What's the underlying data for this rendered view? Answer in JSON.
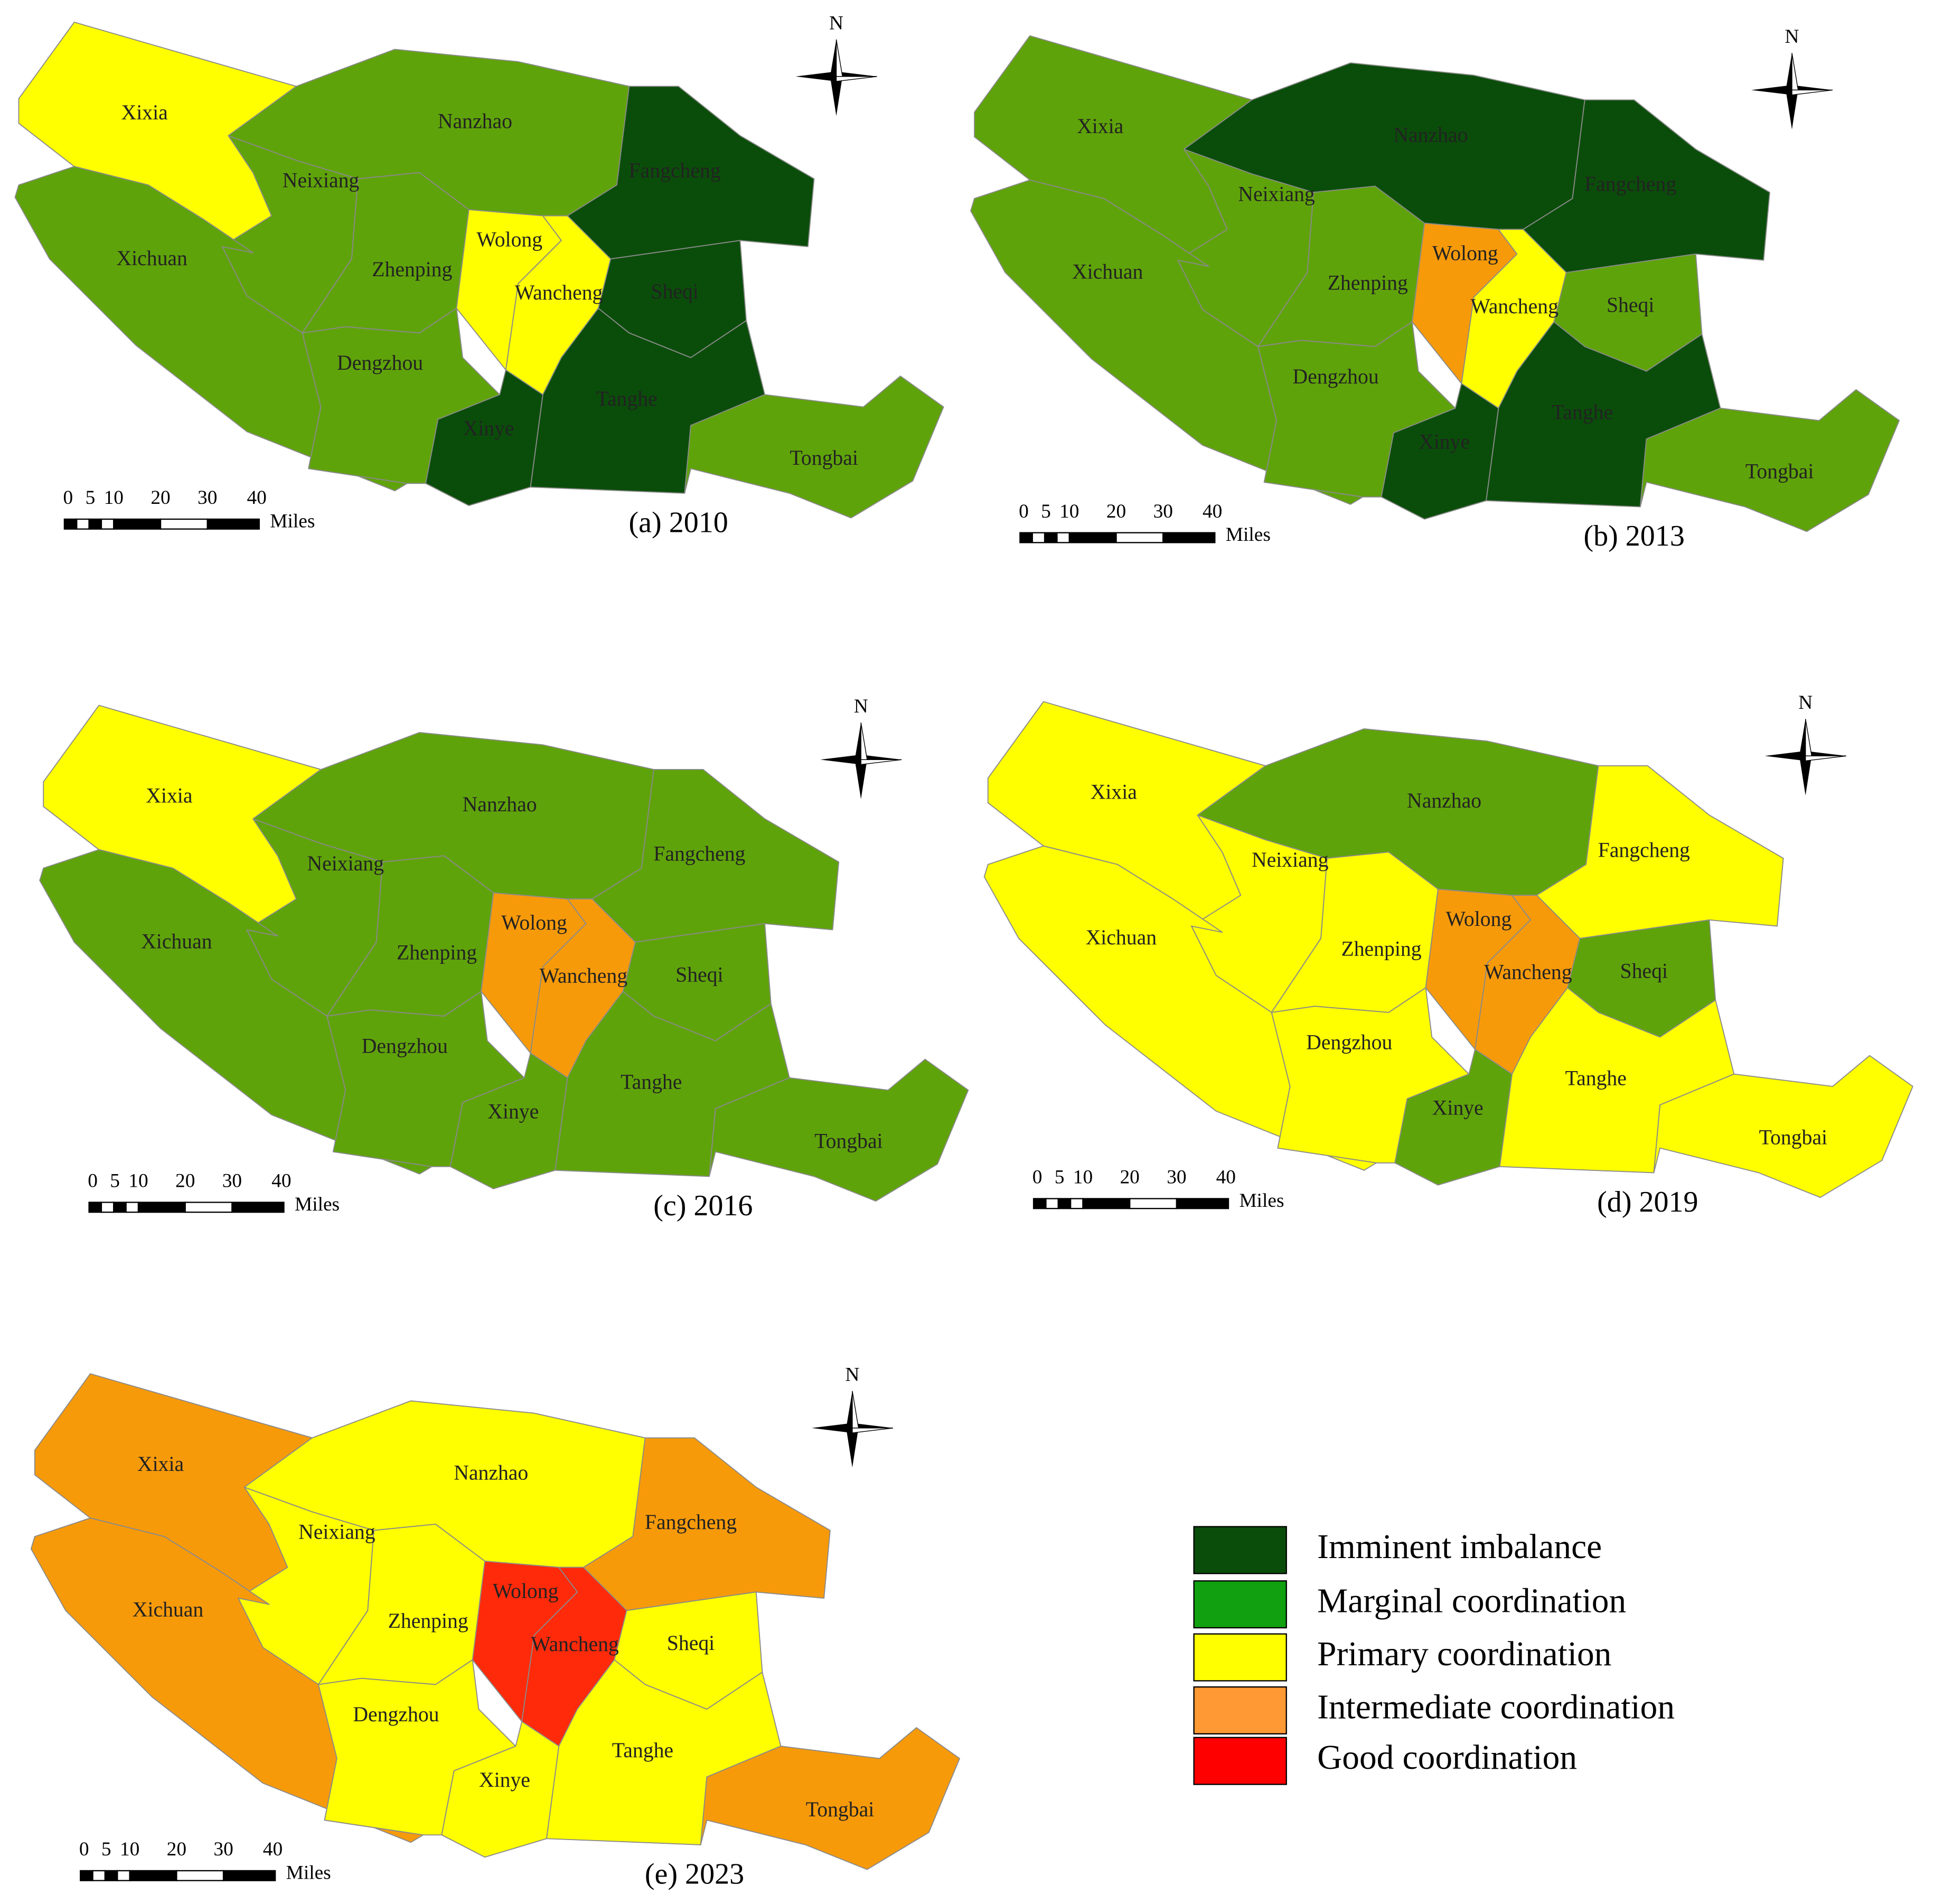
{
  "north": "N",
  "scale_bar": {
    "ticks": [
      "0",
      "5",
      "10",
      "20",
      "30",
      "40"
    ],
    "unit": "Miles"
  },
  "maps": [
    {
      "caption": "(a) 2010",
      "districts": [
        {
          "name": "Xixia",
          "color": "#ffff00"
        },
        {
          "name": "Neixiang",
          "color": "#5fa30a"
        },
        {
          "name": "Nanzhao",
          "color": "#5fa30a"
        },
        {
          "name": "Fangcheng",
          "color": "#0a4d0a"
        },
        {
          "name": "Xichuan",
          "color": "#5fa30a"
        },
        {
          "name": "Zhenping",
          "color": "#5fa30a"
        },
        {
          "name": "Wolong",
          "color": "#ffff00"
        },
        {
          "name": "Wancheng",
          "color": "#ffff00"
        },
        {
          "name": "Sheqi",
          "color": "#0a4d0a"
        },
        {
          "name": "Dengzhou",
          "color": "#5fa30a"
        },
        {
          "name": "Tanghe",
          "color": "#0a4d0a"
        },
        {
          "name": "Xinye",
          "color": "#0a4d0a"
        },
        {
          "name": "Tongbai",
          "color": "#5fa30a"
        }
      ]
    },
    {
      "caption": "(b) 2013",
      "districts": [
        {
          "name": "Xixia",
          "color": "#5fa30a"
        },
        {
          "name": "Neixiang",
          "color": "#5fa30a"
        },
        {
          "name": "Nanzhao",
          "color": "#0a4d0a"
        },
        {
          "name": "Fangcheng",
          "color": "#0a4d0a"
        },
        {
          "name": "Xichuan",
          "color": "#5fa30a"
        },
        {
          "name": "Zhenping",
          "color": "#5fa30a"
        },
        {
          "name": "Wolong",
          "color": "#f79a0a"
        },
        {
          "name": "Wancheng",
          "color": "#ffff00"
        },
        {
          "name": "Sheqi",
          "color": "#5fa30a"
        },
        {
          "name": "Dengzhou",
          "color": "#5fa30a"
        },
        {
          "name": "Tanghe",
          "color": "#0a4d0a"
        },
        {
          "name": "Xinye",
          "color": "#0a4d0a"
        },
        {
          "name": "Tongbai",
          "color": "#5fa30a"
        }
      ]
    },
    {
      "caption": "(c) 2016",
      "districts": [
        {
          "name": "Xixia",
          "color": "#ffff00"
        },
        {
          "name": "Neixiang",
          "color": "#5fa30a"
        },
        {
          "name": "Nanzhao",
          "color": "#5fa30a"
        },
        {
          "name": "Fangcheng",
          "color": "#5fa30a"
        },
        {
          "name": "Xichuan",
          "color": "#5fa30a"
        },
        {
          "name": "Zhenping",
          "color": "#5fa30a"
        },
        {
          "name": "Wolong",
          "color": "#f79a0a"
        },
        {
          "name": "Wancheng",
          "color": "#f79a0a"
        },
        {
          "name": "Sheqi",
          "color": "#5fa30a"
        },
        {
          "name": "Dengzhou",
          "color": "#5fa30a"
        },
        {
          "name": "Tanghe",
          "color": "#5fa30a"
        },
        {
          "name": "Xinye",
          "color": "#5fa30a"
        },
        {
          "name": "Tongbai",
          "color": "#5fa30a"
        }
      ]
    },
    {
      "caption": "(d) 2019",
      "districts": [
        {
          "name": "Xixia",
          "color": "#ffff00"
        },
        {
          "name": "Neixiang",
          "color": "#ffff00"
        },
        {
          "name": "Nanzhao",
          "color": "#5fa30a"
        },
        {
          "name": "Fangcheng",
          "color": "#ffff00"
        },
        {
          "name": "Xichuan",
          "color": "#ffff00"
        },
        {
          "name": "Zhenping",
          "color": "#ffff00"
        },
        {
          "name": "Wolong",
          "color": "#f79a0a"
        },
        {
          "name": "Wancheng",
          "color": "#f79a0a"
        },
        {
          "name": "Sheqi",
          "color": "#5fa30a"
        },
        {
          "name": "Dengzhou",
          "color": "#ffff00"
        },
        {
          "name": "Tanghe",
          "color": "#ffff00"
        },
        {
          "name": "Xinye",
          "color": "#5fa30a"
        },
        {
          "name": "Tongbai",
          "color": "#ffff00"
        }
      ]
    },
    {
      "caption": "(e) 2023",
      "districts": [
        {
          "name": "Xixia",
          "color": "#f79a0a"
        },
        {
          "name": "Neixiang",
          "color": "#ffff00"
        },
        {
          "name": "Nanzhao",
          "color": "#ffff00"
        },
        {
          "name": "Fangcheng",
          "color": "#f79a0a"
        },
        {
          "name": "Xichuan",
          "color": "#f79a0a"
        },
        {
          "name": "Zhenping",
          "color": "#ffff00"
        },
        {
          "name": "Wolong",
          "color": "#ff2a0a"
        },
        {
          "name": "Wancheng",
          "color": "#ff2a0a"
        },
        {
          "name": "Sheqi",
          "color": "#ffff00"
        },
        {
          "name": "Dengzhou",
          "color": "#ffff00"
        },
        {
          "name": "Tanghe",
          "color": "#ffff00"
        },
        {
          "name": "Xinye",
          "color": "#ffff00"
        },
        {
          "name": "Tongbai",
          "color": "#f79a0a"
        }
      ]
    }
  ],
  "legend": [
    {
      "label": "Imminent imbalance",
      "color": "#0a4d0a"
    },
    {
      "label": "Marginal coordination",
      "color": "#10a010"
    },
    {
      "label": "Primary coordination",
      "color": "#ffff00"
    },
    {
      "label": "Intermediate coordination",
      "color": "#ff9933"
    },
    {
      "label": "Good coordination",
      "color": "#ff0000"
    }
  ]
}
